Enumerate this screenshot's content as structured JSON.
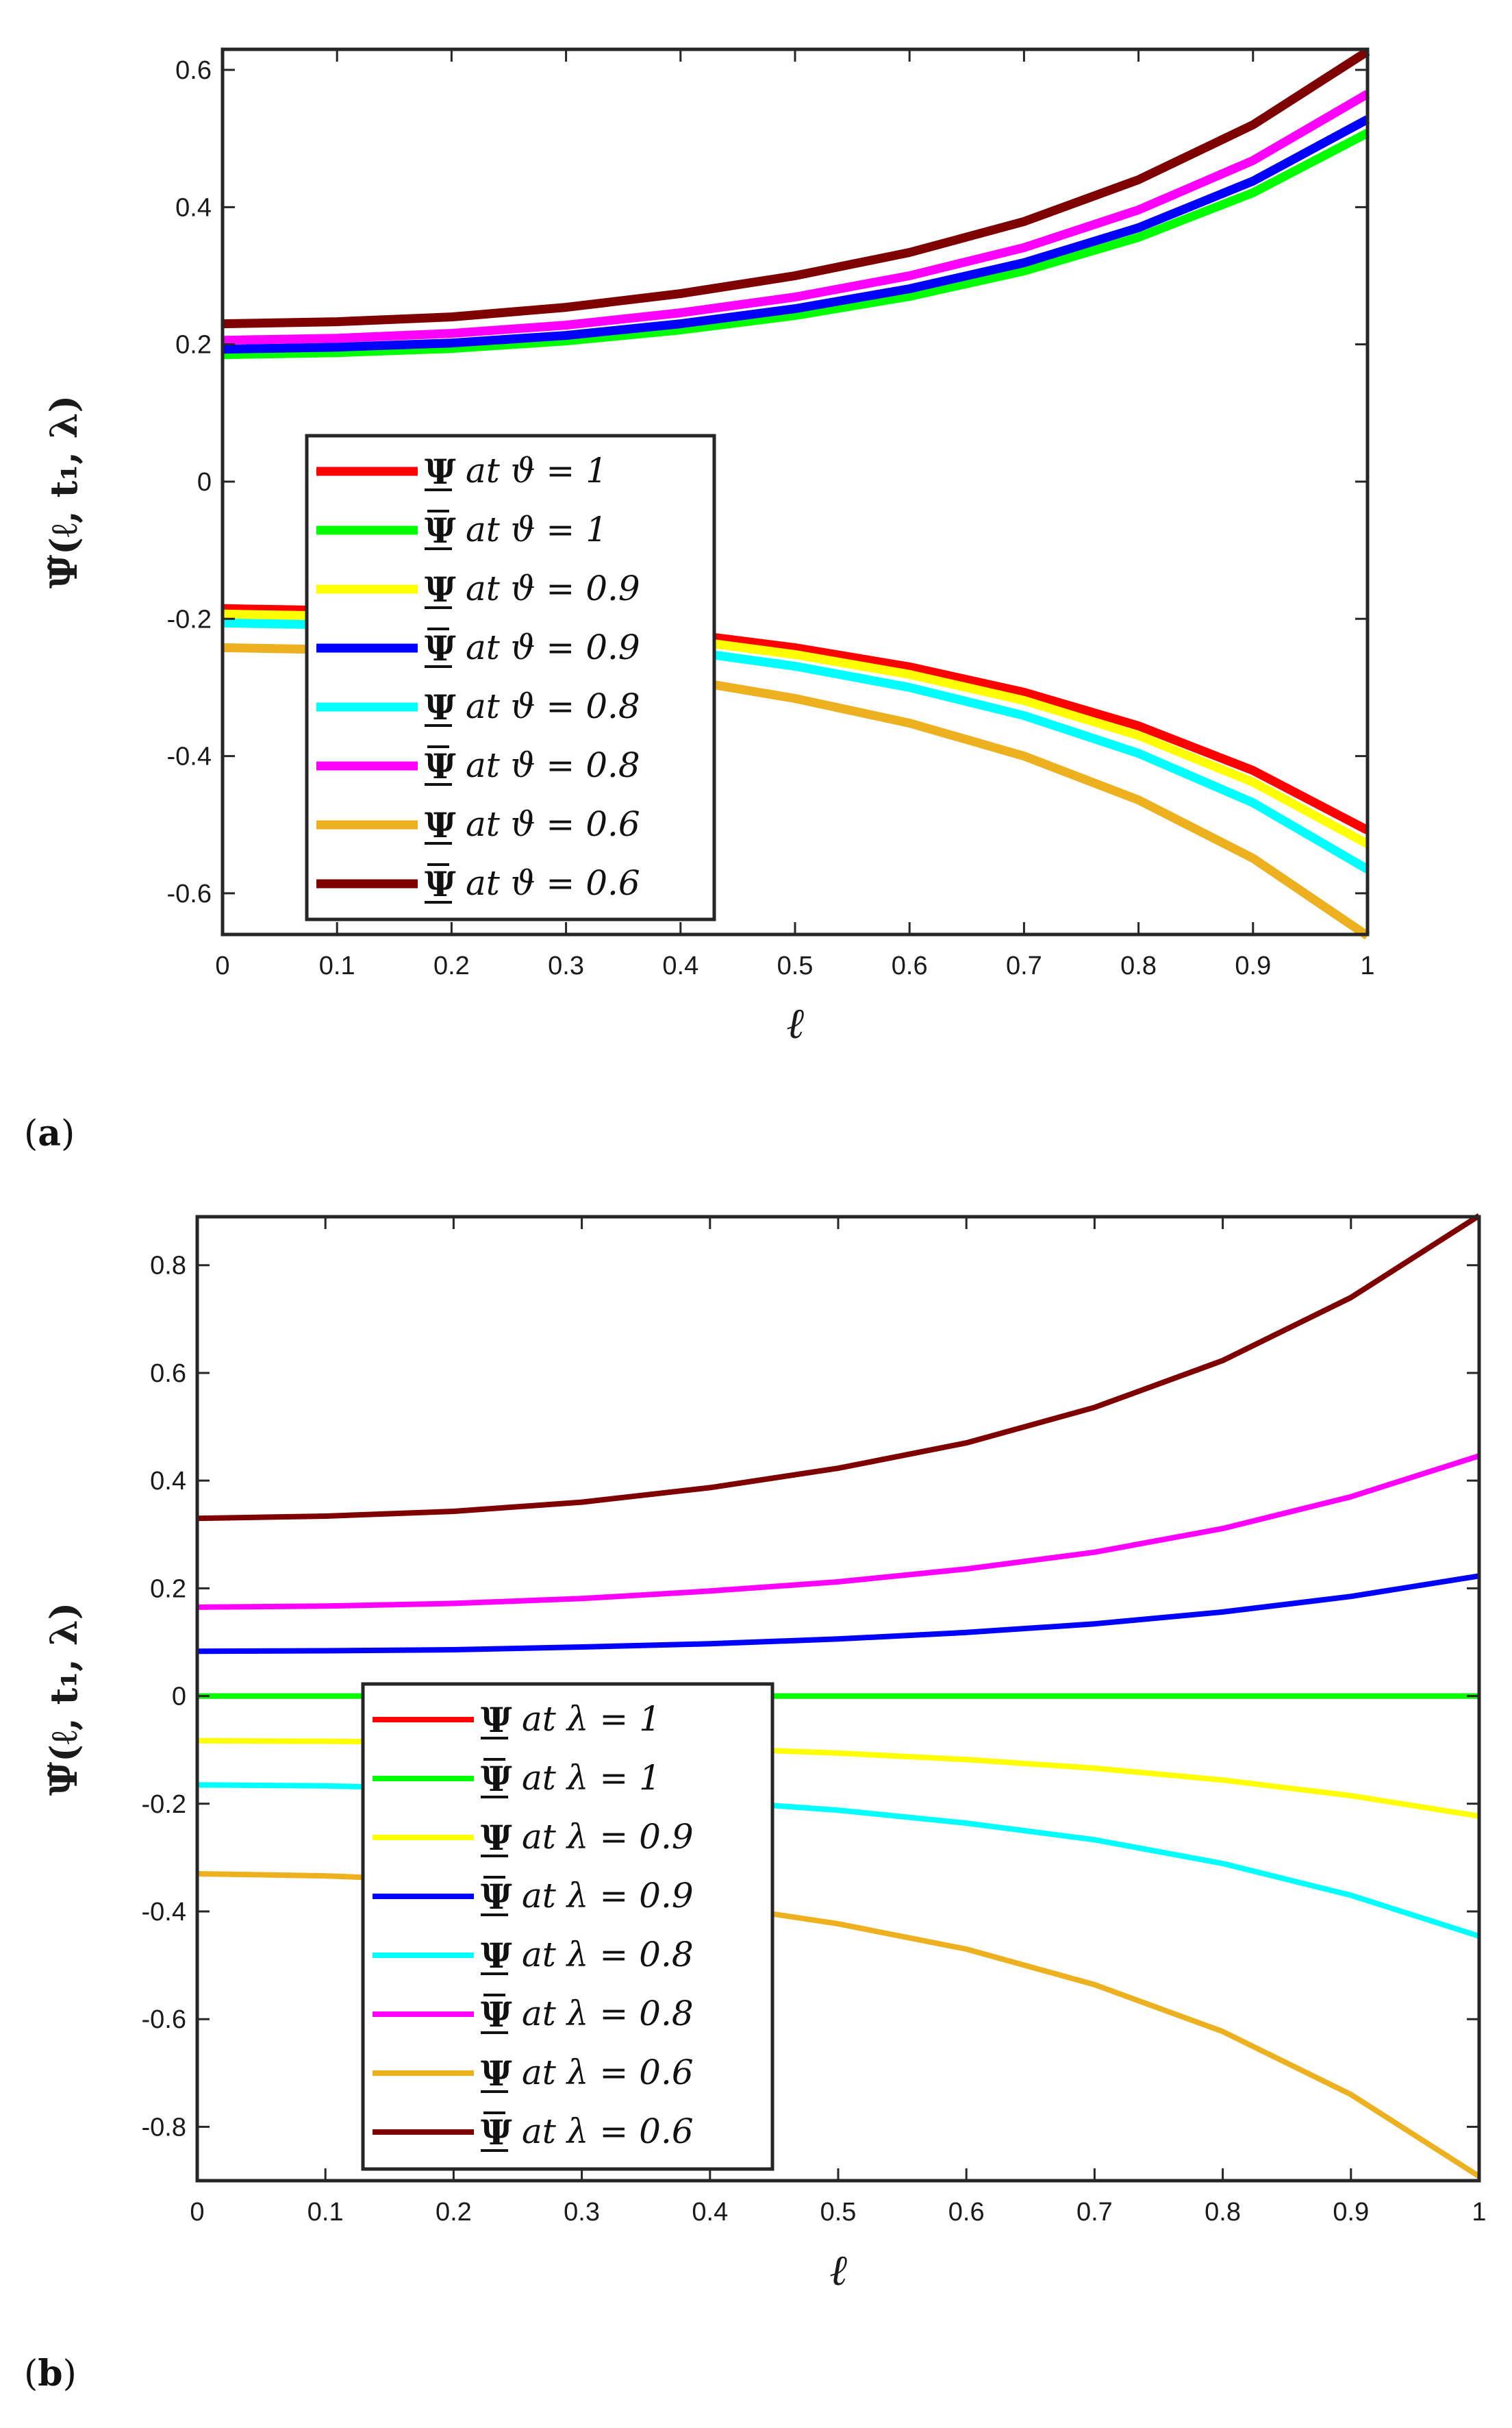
{
  "chart_data": [
    {
      "type": "line",
      "panel_label": "(a)",
      "xlabel": "ℓ",
      "ylabel": "Ψ̃(ℓ, t₁, λ)",
      "xlim": [
        0,
        1
      ],
      "ylim": [
        -0.66,
        0.63
      ],
      "xticks": [
        "0",
        "0.1",
        "0.2",
        "0.3",
        "0.4",
        "0.5",
        "0.6",
        "0.7",
        "0.8",
        "0.9",
        "1"
      ],
      "yticks": [
        "-0.6",
        "-0.4",
        "-0.2",
        "0",
        "0.2",
        "0.4",
        "0.6"
      ],
      "ytick_values": [
        -0.6,
        -0.4,
        -0.2,
        0,
        0.2,
        0.4,
        0.6
      ],
      "x": [
        0,
        0.1,
        0.2,
        0.3,
        0.4,
        0.5,
        0.6,
        0.7,
        0.8,
        0.9,
        1
      ],
      "legend_location": "center-left",
      "series": [
        {
          "name": "Ψ at ϑ = 1",
          "symbol": "Ψ",
          "mark": "under",
          "param": "ϑ",
          "value_label": "1",
          "color": "#ff0000",
          "values": [
            -0.185,
            -0.188,
            -0.194,
            -0.205,
            -0.221,
            -0.242,
            -0.27,
            -0.307,
            -0.356,
            -0.421,
            -0.508
          ]
        },
        {
          "name": "Ψ̄ at ϑ = 1",
          "symbol": "Ψ",
          "mark": "bar",
          "param": "ϑ",
          "value_label": "1",
          "color": "#00ff00",
          "values": [
            0.185,
            0.188,
            0.194,
            0.205,
            0.221,
            0.242,
            0.27,
            0.307,
            0.356,
            0.421,
            0.508
          ]
        },
        {
          "name": "Ψ at ϑ = 0.9",
          "symbol": "Ψ",
          "mark": "under",
          "param": "ϑ",
          "value_label": "0.9",
          "color": "#ffff00",
          "values": [
            -0.193,
            -0.196,
            -0.202,
            -0.213,
            -0.23,
            -0.252,
            -0.281,
            -0.319,
            -0.37,
            -0.438,
            -0.528
          ]
        },
        {
          "name": "Ψ̄ at ϑ = 0.9",
          "symbol": "Ψ",
          "mark": "bar",
          "param": "ϑ",
          "value_label": "0.9",
          "color": "#0000ff",
          "values": [
            0.193,
            0.196,
            0.202,
            0.213,
            0.23,
            0.252,
            0.281,
            0.319,
            0.37,
            0.438,
            0.528
          ]
        },
        {
          "name": "Ψ at ϑ = 0.8",
          "symbol": "Ψ",
          "mark": "under",
          "param": "ϑ",
          "value_label": "0.8",
          "color": "#00ffff",
          "values": [
            -0.206,
            -0.209,
            -0.216,
            -0.228,
            -0.246,
            -0.269,
            -0.3,
            -0.341,
            -0.396,
            -0.468,
            -0.565
          ]
        },
        {
          "name": "Ψ̄ at ϑ = 0.8",
          "symbol": "Ψ",
          "mark": "bar",
          "param": "ϑ",
          "value_label": "0.8",
          "color": "#ff00ff",
          "values": [
            0.206,
            0.209,
            0.216,
            0.228,
            0.246,
            0.269,
            0.3,
            0.341,
            0.396,
            0.468,
            0.565
          ]
        },
        {
          "name": "Ψ at ϑ = 0.6",
          "symbol": "Ψ",
          "mark": "under",
          "param": "ϑ",
          "value_label": "0.6",
          "color": "#edb120",
          "values": [
            -0.242,
            -0.245,
            -0.253,
            -0.267,
            -0.288,
            -0.316,
            -0.352,
            -0.4,
            -0.464,
            -0.549,
            -0.662
          ]
        },
        {
          "name": "Ψ̄ at ϑ = 0.6",
          "symbol": "Ψ",
          "mark": "bar",
          "param": "ϑ",
          "value_label": "0.6",
          "color": "#7e0000",
          "values": [
            0.23,
            0.233,
            0.24,
            0.254,
            0.274,
            0.3,
            0.334,
            0.379,
            0.44,
            0.52,
            0.627
          ]
        }
      ]
    },
    {
      "type": "line",
      "panel_label": "(b)",
      "xlabel": "ℓ",
      "ylabel": "Ψ̃(ℓ, t₁, λ)",
      "xlim": [
        0,
        1
      ],
      "ylim": [
        -0.9,
        0.89
      ],
      "xticks": [
        "0",
        "0.1",
        "0.2",
        "0.3",
        "0.4",
        "0.5",
        "0.6",
        "0.7",
        "0.8",
        "0.9",
        "1"
      ],
      "yticks": [
        "-0.8",
        "-0.6",
        "-0.4",
        "-0.2",
        "0",
        "0.2",
        "0.4",
        "0.6",
        "0.8"
      ],
      "ytick_values": [
        -0.8,
        -0.6,
        -0.4,
        -0.2,
        0,
        0.2,
        0.4,
        0.6,
        0.8
      ],
      "x": [
        0,
        0.1,
        0.2,
        0.3,
        0.4,
        0.5,
        0.6,
        0.7,
        0.8,
        0.9,
        1
      ],
      "legend_location": "lower-left",
      "series": [
        {
          "name": "Ψ at λ = 1",
          "symbol": "Ψ",
          "mark": "under",
          "param": "λ",
          "value_label": "1",
          "color": "#ff0000",
          "values": [
            0,
            0,
            0,
            0,
            0,
            0,
            0,
            0,
            0,
            0,
            0
          ]
        },
        {
          "name": "Ψ̄ at λ = 1",
          "symbol": "Ψ",
          "mark": "bar",
          "param": "λ",
          "value_label": "1",
          "color": "#00ff00",
          "values": [
            0,
            0,
            0,
            0,
            0,
            0,
            0,
            0,
            0,
            0,
            0
          ]
        },
        {
          "name": "Ψ at λ = 0.9",
          "symbol": "Ψ",
          "mark": "under",
          "param": "λ",
          "value_label": "0.9",
          "color": "#ffff00",
          "values": [
            -0.083,
            -0.084,
            -0.086,
            -0.091,
            -0.097,
            -0.106,
            -0.118,
            -0.134,
            -0.156,
            -0.185,
            -0.223
          ]
        },
        {
          "name": "Ψ̄ at λ = 0.9",
          "symbol": "Ψ",
          "mark": "bar",
          "param": "λ",
          "value_label": "0.9",
          "color": "#0000ff",
          "values": [
            0.083,
            0.084,
            0.086,
            0.091,
            0.097,
            0.106,
            0.118,
            0.134,
            0.156,
            0.185,
            0.223
          ]
        },
        {
          "name": "Ψ at λ = 0.8",
          "symbol": "Ψ",
          "mark": "under",
          "param": "λ",
          "value_label": "0.8",
          "color": "#00ffff",
          "values": [
            -0.165,
            -0.167,
            -0.172,
            -0.181,
            -0.195,
            -0.212,
            -0.236,
            -0.267,
            -0.311,
            -0.37,
            -0.446
          ]
        },
        {
          "name": "Ψ̄ at λ = 0.8",
          "symbol": "Ψ",
          "mark": "bar",
          "param": "λ",
          "value_label": "0.8",
          "color": "#ff00ff",
          "values": [
            0.165,
            0.167,
            0.172,
            0.181,
            0.195,
            0.212,
            0.236,
            0.267,
            0.311,
            0.37,
            0.446
          ]
        },
        {
          "name": "Ψ at λ = 0.6",
          "symbol": "Ψ",
          "mark": "under",
          "param": "λ",
          "value_label": "0.6",
          "color": "#edb120",
          "values": [
            -0.33,
            -0.334,
            -0.343,
            -0.36,
            -0.387,
            -0.423,
            -0.47,
            -0.536,
            -0.623,
            -0.74,
            -0.892
          ]
        },
        {
          "name": "Ψ̄ at λ = 0.6",
          "symbol": "Ψ",
          "mark": "bar",
          "param": "λ",
          "value_label": "0.6",
          "color": "#7e0000",
          "values": [
            0.33,
            0.334,
            0.343,
            0.36,
            0.387,
            0.423,
            0.47,
            0.536,
            0.623,
            0.74,
            0.892
          ]
        }
      ]
    }
  ]
}
